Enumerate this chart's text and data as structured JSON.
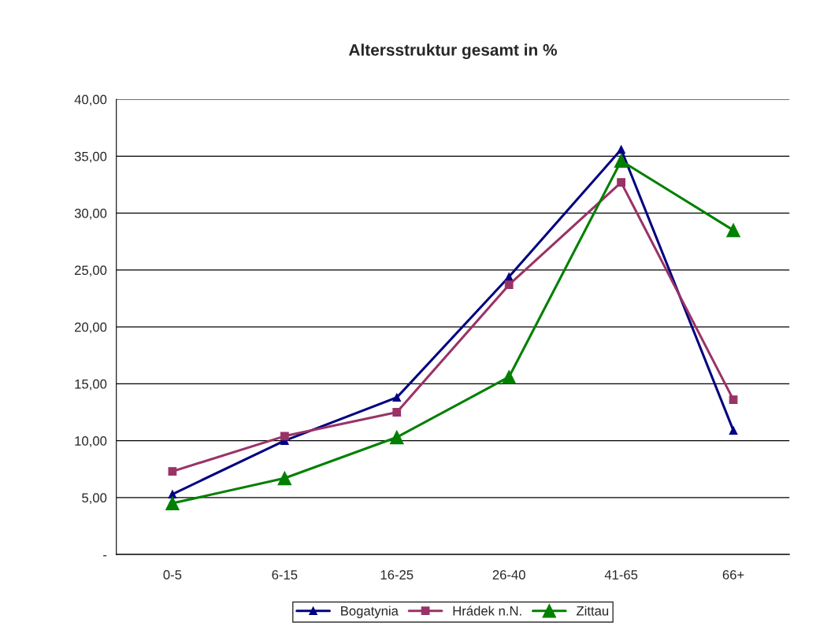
{
  "chart_data": {
    "type": "line",
    "title": "Altersstruktur gesamt in %",
    "categories": [
      "0-5",
      "6-15",
      "16-25",
      "26-40",
      "41-65",
      "66+"
    ],
    "series": [
      {
        "name": "Bogatynia",
        "color": "#000080",
        "marker": "triangle",
        "values": [
          5.3,
          10.0,
          13.8,
          24.4,
          35.6,
          10.9
        ]
      },
      {
        "name": "Hrádek n.N.",
        "color": "#993366",
        "marker": "square",
        "values": [
          7.3,
          10.4,
          12.5,
          23.7,
          32.7,
          13.6
        ]
      },
      {
        "name": "Zittau",
        "color": "#008000",
        "marker": "triangle",
        "values": [
          4.5,
          6.7,
          10.3,
          15.6,
          34.6,
          28.5
        ]
      }
    ],
    "ylim": [
      0,
      40
    ],
    "yticks": [
      {
        "value": 0,
        "label": "-"
      },
      {
        "value": 5,
        "label": "5,00"
      },
      {
        "value": 10,
        "label": "10,00"
      },
      {
        "value": 15,
        "label": "15,00"
      },
      {
        "value": 20,
        "label": "20,00"
      },
      {
        "value": 25,
        "label": "25,00"
      },
      {
        "value": 30,
        "label": "30,00"
      },
      {
        "value": 35,
        "label": "35,00"
      },
      {
        "value": 40,
        "label": "40,00"
      }
    ],
    "grid": "y",
    "legend": "bottom",
    "line_style": "solid"
  }
}
